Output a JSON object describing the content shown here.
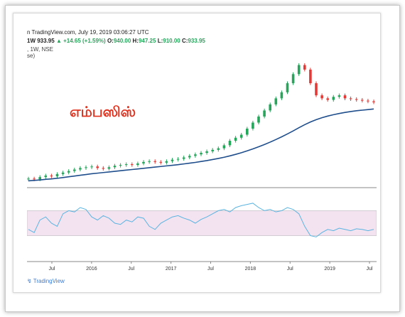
{
  "header": {
    "source_line": "n TradingView.com, July 19, 2019 03:06:27 UTC",
    "interval_prefix": "1W",
    "last_price": "933.95",
    "change": "+14.65 (+1.59%)",
    "open_label": "O:",
    "open": "940.00",
    "high_label": "H:",
    "high": "947.25",
    "low_label": "L:",
    "low": "910.00",
    "close_label": "C:",
    "close": "933.95",
    "symbol_line": ", 1W, NSE",
    "line3": "se)"
  },
  "watermark_text": "எம்பஸிஸ்",
  "logo_text": "TradingView",
  "colors": {
    "up": "#26a65b",
    "down": "#e53935",
    "ma": "#1f4e8c",
    "rsi": "#5ab4e0",
    "rsi_band": "#f3e3f1"
  },
  "chart_data": [
    {
      "type": "candlestick",
      "title": "",
      "x_tick_labels": [
        "Jul",
        "2016",
        "Jul",
        "2017",
        "Jul",
        "2018",
        "Jul",
        "2019",
        "Jul"
      ],
      "series": [
        {
          "kind": "price_close_weekly",
          "values": [
            430,
            425,
            440,
            450,
            445,
            460,
            470,
            480,
            490,
            500,
            505,
            510,
            500,
            495,
            505,
            515,
            520,
            525,
            520,
            530,
            540,
            545,
            540,
            535,
            545,
            555,
            560,
            570,
            580,
            590,
            600,
            610,
            620,
            630,
            650,
            680,
            700,
            720,
            760,
            800,
            840,
            880,
            920,
            960,
            1000,
            1060,
            1120,
            1180,
            1150,
            1060,
            980,
            960,
            950,
            970,
            980,
            960,
            955,
            950,
            945,
            940,
            934
          ]
        },
        {
          "kind": "moving_average",
          "values": [
            415,
            418,
            421,
            425,
            428,
            432,
            437,
            442,
            447,
            452,
            457,
            462,
            466,
            470,
            474,
            478,
            482,
            486,
            490,
            494,
            498,
            502,
            506,
            510,
            514,
            518,
            522,
            527,
            532,
            537,
            543,
            549,
            556,
            563,
            571,
            580,
            590,
            601,
            613,
            626,
            640,
            655,
            671,
            688,
            706,
            725,
            745,
            766,
            786,
            804,
            819,
            832,
            843,
            852,
            860,
            867,
            873,
            878,
            882,
            886,
            890
          ]
        }
      ]
    },
    {
      "type": "line",
      "title": "",
      "ylim": [
        0,
        100
      ],
      "band": [
        30,
        70
      ],
      "series": [
        {
          "kind": "rsi",
          "values": [
            40,
            35,
            55,
            60,
            50,
            45,
            65,
            70,
            68,
            75,
            72,
            60,
            55,
            62,
            58,
            50,
            48,
            55,
            52,
            60,
            58,
            45,
            40,
            50,
            55,
            60,
            62,
            58,
            55,
            50,
            56,
            60,
            65,
            70,
            72,
            68,
            75,
            78,
            80,
            82,
            75,
            70,
            72,
            68,
            70,
            75,
            72,
            65,
            45,
            30,
            28,
            35,
            40,
            38,
            42,
            40,
            38,
            41,
            40,
            38,
            40
          ]
        }
      ]
    }
  ]
}
